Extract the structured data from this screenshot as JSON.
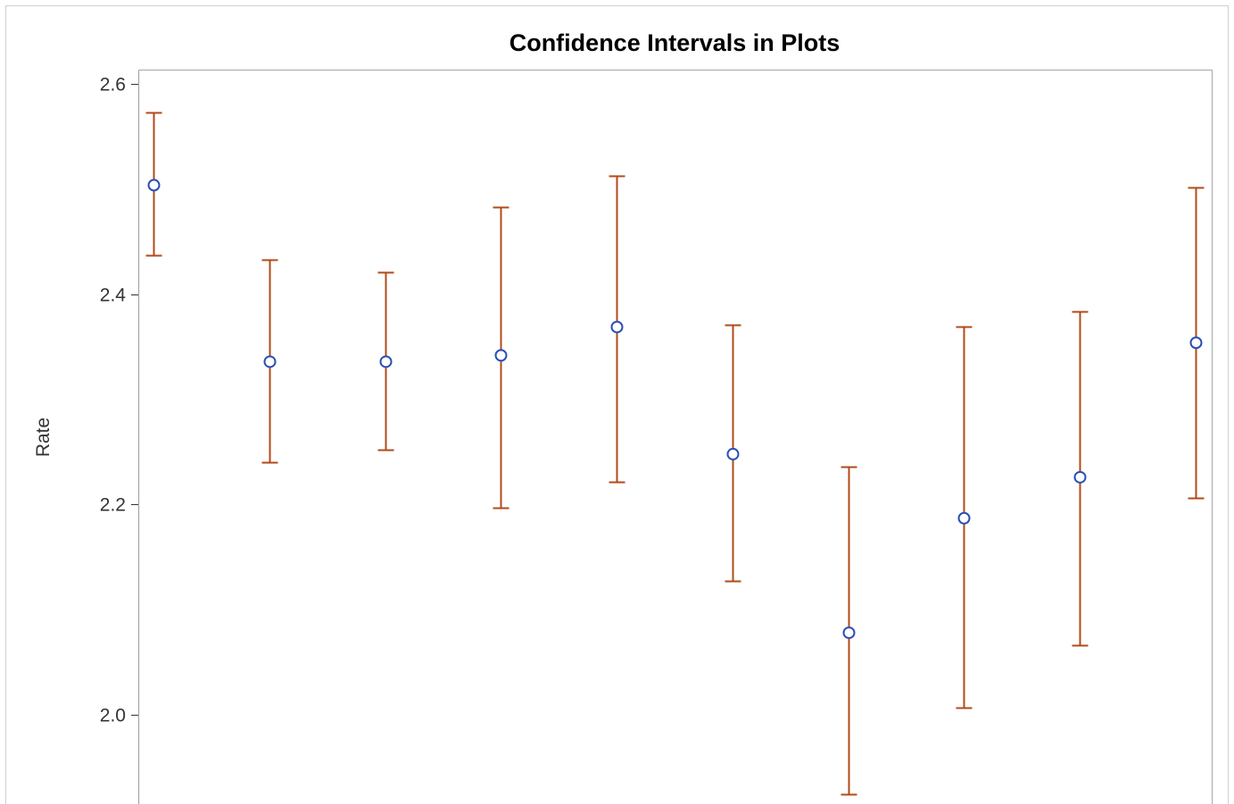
{
  "chart_data": {
    "type": "scatter",
    "title": "Confidence Intervals in Plots",
    "xlabel": "",
    "ylabel": "Rate",
    "ylim": [
      1.915,
      2.614
    ],
    "yticks": [
      {
        "value": 2.0,
        "label": "2.0"
      },
      {
        "value": 2.2,
        "label": "2.2"
      },
      {
        "value": 2.4,
        "label": "2.4"
      },
      {
        "value": 2.6,
        "label": "2.6"
      }
    ],
    "grid": false,
    "legend": "none",
    "colors": {
      "marker": "#2a4fb5",
      "interval": "#b24a1a",
      "frame": "#a6a6a6",
      "axis": "#333333"
    },
    "series": [
      {
        "points": [
          {
            "x": 1,
            "y": 2.504,
            "lower": 2.437,
            "upper": 2.573
          },
          {
            "x": 2,
            "y": 2.336,
            "lower": 2.24,
            "upper": 2.433
          },
          {
            "x": 3,
            "y": 2.336,
            "lower": 2.252,
            "upper": 2.421
          },
          {
            "x": 4,
            "y": 2.342,
            "lower": 2.197,
            "upper": 2.483
          },
          {
            "x": 5,
            "y": 2.369,
            "lower": 2.222,
            "upper": 2.513
          },
          {
            "x": 6,
            "y": 2.248,
            "lower": 2.127,
            "upper": 2.371
          },
          {
            "x": 7,
            "y": 2.078,
            "lower": 1.924,
            "upper": 2.236
          },
          {
            "x": 8,
            "y": 2.187,
            "lower": 2.007,
            "upper": 2.369
          },
          {
            "x": 9,
            "y": 2.226,
            "lower": 2.066,
            "upper": 2.384
          },
          {
            "x": 10,
            "y": 2.354,
            "lower": 2.206,
            "upper": 2.502
          }
        ]
      }
    ]
  }
}
